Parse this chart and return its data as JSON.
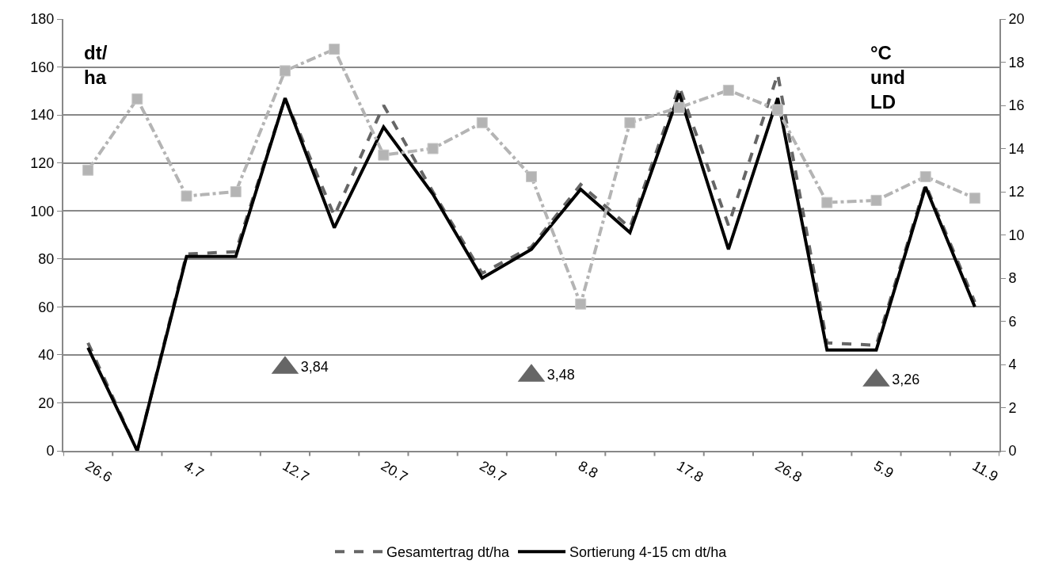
{
  "chart_data": {
    "type": "line",
    "ylabel": "dt/ha",
    "y2label": "°C und LD",
    "categories": [
      "26.6",
      null,
      "4.7",
      null,
      "12.7",
      null,
      "20.7",
      null,
      "29.7",
      null,
      "8.8",
      null,
      "17.8",
      null,
      "26.8",
      null,
      "5.9",
      null,
      "11.9"
    ],
    "series": [
      {
        "color": "#b4b4b4",
        "axis": "y2",
        "marker": "square",
        "line_style": "dashdot",
        "values": [
          13.0,
          16.3,
          11.8,
          12.0,
          17.6,
          18.6,
          13.7,
          14.0,
          15.2,
          12.7,
          6.8,
          15.2,
          15.9,
          16.7,
          15.8,
          11.5,
          11.6,
          12.7,
          11.7
        ]
      },
      {
        "name": "Gesamtertrag dt/ha",
        "color": "#666666",
        "marker": "none",
        "line_style": "dashed",
        "values": [
          45,
          0,
          82,
          83,
          147,
          98,
          144,
          108,
          74,
          85,
          111,
          93,
          152,
          94,
          157,
          45,
          44,
          111,
          62
        ]
      },
      {
        "name": "Sortierung 4-15 cm dt/ha",
        "color": "#000000",
        "marker": "none",
        "line_style": "solid",
        "values": [
          43,
          0,
          81,
          81,
          147,
          93,
          135,
          107,
          72,
          84,
          109,
          91,
          149,
          84,
          147,
          42,
          42,
          110,
          60
        ]
      },
      {
        "type": "scatter",
        "color": "#666666",
        "axis": "y2",
        "marker": "triangle",
        "values": [
          null,
          null,
          null,
          null,
          3.84,
          null,
          null,
          null,
          null,
          3.48,
          null,
          null,
          null,
          null,
          null,
          null,
          3.26,
          null,
          null
        ],
        "value_labels": [
          null,
          null,
          null,
          null,
          "3,84",
          null,
          null,
          null,
          null,
          "3,48",
          null,
          null,
          null,
          null,
          null,
          null,
          "3,26",
          null,
          null
        ]
      }
    ],
    "ylim": [
      0,
      180
    ],
    "yticks": [
      0,
      20,
      40,
      60,
      80,
      100,
      120,
      140,
      160,
      180
    ],
    "y2lim": [
      0,
      20
    ],
    "y2ticks": [
      0,
      2,
      4,
      6,
      8,
      10,
      12,
      14,
      16,
      18,
      20
    ],
    "grid": "y",
    "legend": "bottom"
  }
}
